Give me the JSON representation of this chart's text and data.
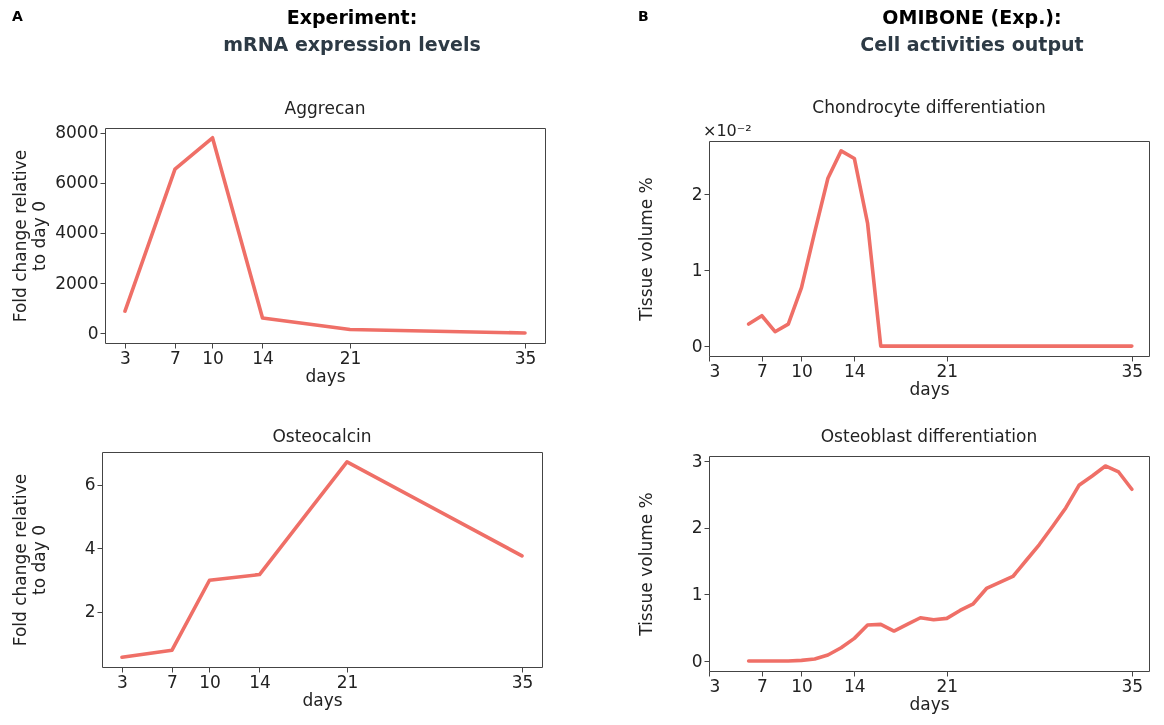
{
  "chart_data": [
    {
      "type": "line",
      "title": "Aggrecan",
      "xlabel": "days",
      "ylabel": "Fold change relative\nto day 0",
      "annotations": [
        "A",
        "Experiment:",
        "mRNA expression levels"
      ],
      "x": [
        3,
        7,
        10,
        14,
        21,
        35
      ],
      "series": [
        {
          "color": "#ef6f67",
          "values": [
            880,
            6550,
            7800,
            610,
            150,
            10
          ]
        }
      ],
      "xlim": [
        1.4,
        36.6
      ],
      "ylim": [
        -390,
        8190
      ],
      "xticks": [
        3,
        7,
        10,
        14,
        21,
        35
      ],
      "yticks": [
        0,
        2000,
        4000,
        6000,
        8000
      ]
    },
    {
      "type": "line",
      "title": "Chondrocyte differentiation",
      "xlabel": "days",
      "ylabel": "Tissue volume %",
      "annotations": [
        "B",
        "OMIBONE (Exp.):",
        "Cell activities output",
        "×10⁻²"
      ],
      "x": [
        6,
        7,
        8,
        9,
        10,
        11,
        12,
        13,
        14,
        15,
        16,
        17,
        18,
        19,
        20,
        21,
        22,
        23,
        24,
        25,
        26,
        27,
        28,
        29,
        30,
        31,
        32,
        33,
        34,
        35
      ],
      "series": [
        {
          "color": "#ef6f67",
          "values": [
            0.29,
            0.4,
            0.19,
            0.29,
            0.77,
            1.5,
            2.21,
            2.57,
            2.47,
            1.62,
            0,
            0,
            0,
            0,
            0,
            0,
            0,
            0,
            0,
            0,
            0,
            0,
            0,
            0,
            0,
            0,
            0,
            0,
            0,
            0
          ]
        }
      ],
      "xlim": [
        3,
        36.3
      ],
      "ylim": [
        -0.13,
        2.7
      ],
      "xticks": [
        3,
        7,
        10,
        14,
        21,
        35
      ],
      "yticks": [
        0,
        1,
        2
      ]
    },
    {
      "type": "line",
      "title": "Osteocalcin",
      "xlabel": "days",
      "ylabel": "Fold change relative\nto day 0",
      "x": [
        3,
        7,
        10,
        14,
        21,
        35
      ],
      "series": [
        {
          "color": "#ef6f67",
          "values": [
            0.56,
            0.78,
            2.99,
            3.17,
            6.73,
            3.76
          ]
        }
      ],
      "xlim": [
        1.4,
        36.6
      ],
      "ylim": [
        0.25,
        7.04
      ],
      "xticks": [
        3,
        7,
        10,
        14,
        21,
        35
      ],
      "yticks": [
        2,
        4,
        6
      ]
    },
    {
      "type": "line",
      "title": "Osteoblast differentiation",
      "xlabel": "days",
      "ylabel": "Tissue volume %",
      "x": [
        6,
        7,
        8,
        9,
        10,
        11,
        12,
        13,
        14,
        15,
        16,
        17,
        18,
        19,
        20,
        21,
        22,
        23,
        24,
        25,
        26,
        27,
        28,
        29,
        30,
        31,
        32,
        33,
        34,
        35
      ],
      "series": [
        {
          "color": "#ef6f67",
          "values": [
            0,
            0,
            0,
            0,
            0.01,
            0.03,
            0.09,
            0.2,
            0.34,
            0.54,
            0.55,
            0.45,
            0.55,
            0.65,
            0.62,
            0.64,
            0.76,
            0.86,
            1.09,
            1.18,
            1.27,
            1.51,
            1.75,
            2.02,
            2.3,
            2.64,
            2.78,
            2.93,
            2.84,
            2.58
          ]
        }
      ],
      "xlim": [
        3,
        36.3
      ],
      "ylim": [
        -0.15,
        3.08
      ],
      "xticks": [
        3,
        7,
        10,
        14,
        21,
        35
      ],
      "yticks": [
        0,
        1,
        2,
        3
      ]
    }
  ]
}
